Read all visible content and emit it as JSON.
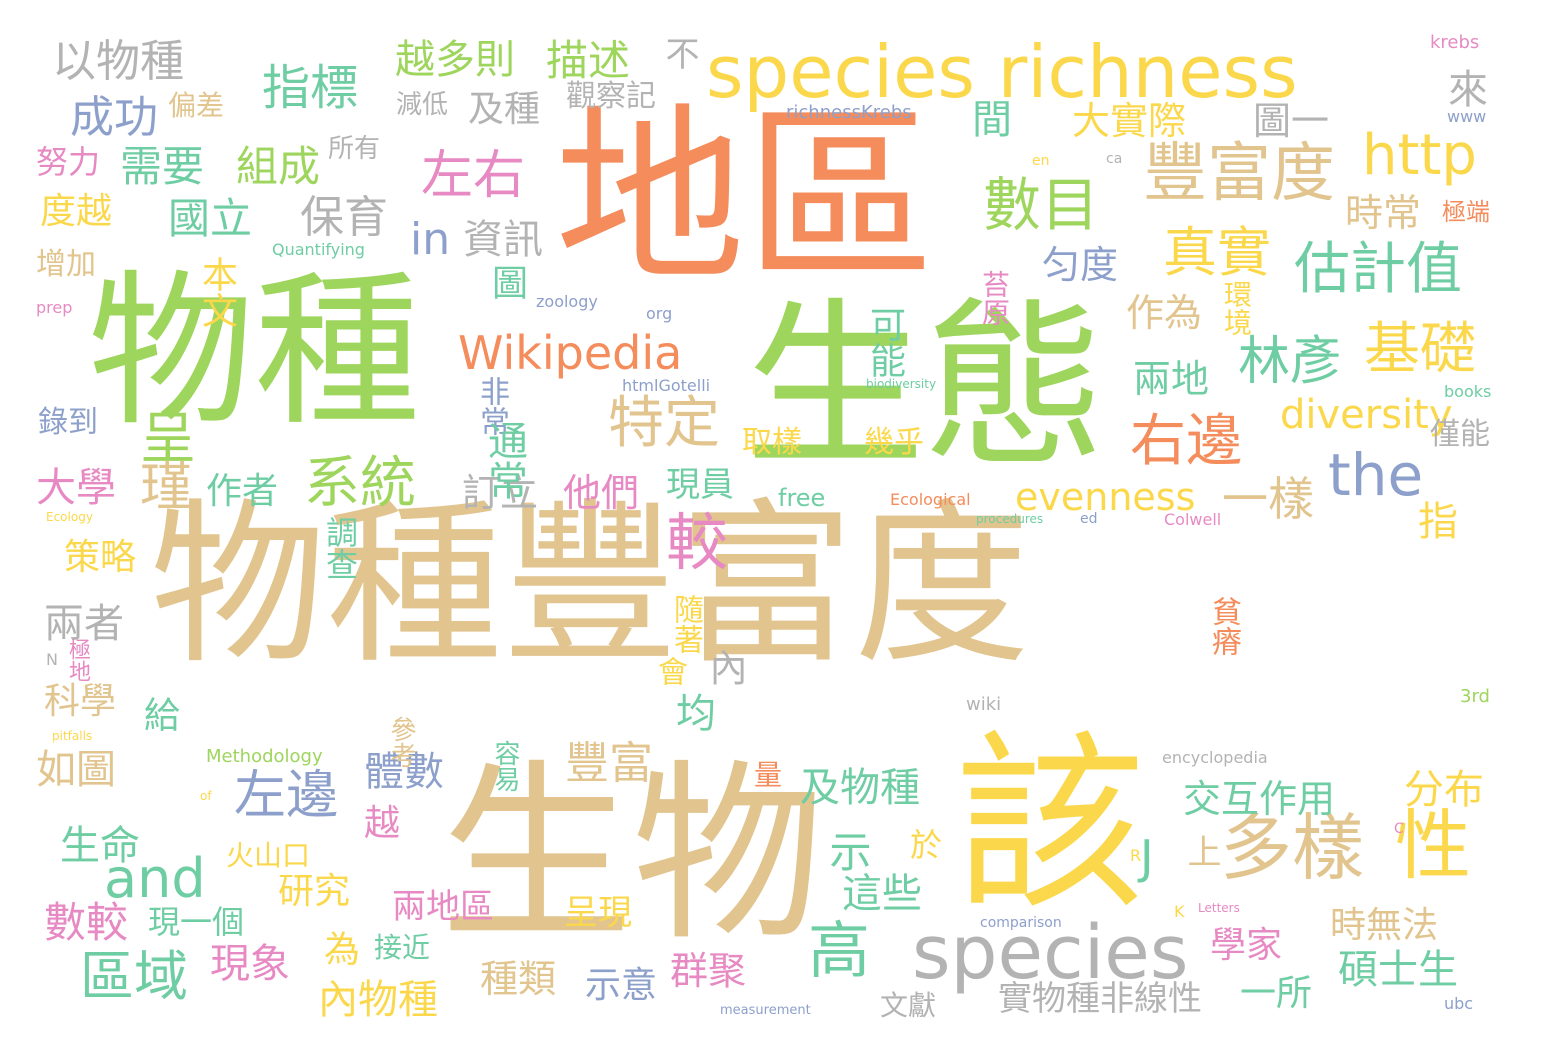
{
  "palette": {
    "tan": "#E1C48E",
    "orange": "#F48C5C",
    "green": "#9ED55C",
    "yellow": "#FBD84B",
    "teal": "#6ECDA3",
    "blue": "#8DA0CB",
    "pink": "#E78AC3",
    "gray": "#B3B3B3"
  },
  "words": [
    {
      "text": "物種豐富度",
      "color": "tan"
    },
    {
      "text": "地區",
      "color": "orange"
    },
    {
      "text": "物種",
      "color": "green"
    },
    {
      "text": "生態",
      "color": "green"
    },
    {
      "text": "生物",
      "color": "tan"
    },
    {
      "text": "該",
      "color": "yellow"
    },
    {
      "text": "species richness",
      "color": "yellow"
    },
    {
      "text": "species",
      "color": "gray"
    },
    {
      "text": "Wikipedia",
      "color": "orange"
    },
    {
      "text": "指標",
      "color": "teal"
    },
    {
      "text": "系統",
      "color": "green"
    },
    {
      "text": "多樣",
      "color": "tan"
    },
    {
      "text": "性",
      "color": "yellow"
    },
    {
      "text": "豐富度",
      "color": "tan"
    },
    {
      "text": "http",
      "color": "yellow"
    },
    {
      "text": "數目",
      "color": "green"
    },
    {
      "text": "估計值",
      "color": "teal"
    },
    {
      "text": "基礎",
      "color": "yellow"
    },
    {
      "text": "林彥",
      "color": "teal"
    },
    {
      "text": "真實",
      "color": "yellow"
    },
    {
      "text": "左右",
      "color": "pink"
    },
    {
      "text": "較",
      "color": "pink"
    },
    {
      "text": "特定",
      "color": "tan"
    },
    {
      "text": "右邊",
      "color": "orange"
    },
    {
      "text": "the",
      "color": "blue"
    },
    {
      "text": "diversity",
      "color": "yellow"
    },
    {
      "text": "evenness",
      "color": "yellow"
    },
    {
      "text": "一樣",
      "color": "tan"
    },
    {
      "text": "and",
      "color": "teal"
    },
    {
      "text": "高",
      "color": "teal"
    },
    {
      "text": "呈",
      "color": "green"
    },
    {
      "text": "瑾",
      "color": "tan"
    },
    {
      "text": "左邊",
      "color": "blue"
    },
    {
      "text": "區域",
      "color": "teal"
    },
    {
      "text": "以物種",
      "color": "gray"
    },
    {
      "text": "越多則",
      "color": "green"
    },
    {
      "text": "描述",
      "color": "green"
    },
    {
      "text": "成功",
      "color": "blue"
    },
    {
      "text": "需要",
      "color": "teal"
    },
    {
      "text": "組成",
      "color": "green"
    },
    {
      "text": "國立",
      "color": "teal"
    },
    {
      "text": "保育",
      "color": "gray"
    },
    {
      "text": "資訊",
      "color": "gray"
    },
    {
      "text": "in",
      "color": "blue"
    },
    {
      "text": "及種",
      "color": "gray"
    },
    {
      "text": "大實際",
      "color": "yellow"
    },
    {
      "text": "圖一",
      "color": "gray"
    },
    {
      "text": "匀度",
      "color": "blue"
    },
    {
      "text": "作為",
      "color": "tan"
    },
    {
      "text": "兩地",
      "color": "teal"
    },
    {
      "text": "時常",
      "color": "tan"
    },
    {
      "text": "大學",
      "color": "pink"
    },
    {
      "text": "作者",
      "color": "teal"
    },
    {
      "text": "訂立",
      "color": "gray"
    },
    {
      "text": "他們",
      "color": "pink"
    },
    {
      "text": "現員",
      "color": "teal"
    },
    {
      "text": "取樣",
      "color": "yellow"
    },
    {
      "text": "幾乎",
      "color": "yellow"
    },
    {
      "text": "僅能",
      "color": "gray"
    },
    {
      "text": "策略",
      "color": "yellow"
    },
    {
      "text": "兩者",
      "color": "gray"
    },
    {
      "text": "科學",
      "color": "tan"
    },
    {
      "text": "如圖",
      "color": "tan"
    },
    {
      "text": "體數",
      "color": "blue"
    },
    {
      "text": "豐富",
      "color": "tan"
    },
    {
      "text": "及物種",
      "color": "teal"
    },
    {
      "text": "交互作用",
      "color": "teal"
    },
    {
      "text": "分布",
      "color": "yellow"
    },
    {
      "text": "生命",
      "color": "teal"
    },
    {
      "text": "越",
      "color": "pink"
    },
    {
      "text": "火山口",
      "color": "yellow"
    },
    {
      "text": "研究",
      "color": "yellow"
    },
    {
      "text": "這些",
      "color": "teal"
    },
    {
      "text": "數較",
      "color": "pink"
    },
    {
      "text": "現一個",
      "color": "teal"
    },
    {
      "text": "兩地區",
      "color": "pink"
    },
    {
      "text": "呈現",
      "color": "yellow"
    },
    {
      "text": "學家",
      "color": "pink"
    },
    {
      "text": "時無法",
      "color": "tan"
    },
    {
      "text": "現象",
      "color": "pink"
    },
    {
      "text": "種類",
      "color": "tan"
    },
    {
      "text": "示意",
      "color": "blue"
    },
    {
      "text": "群聚",
      "color": "pink"
    },
    {
      "text": "碩士生",
      "color": "teal"
    },
    {
      "text": "內物種",
      "color": "yellow"
    },
    {
      "text": "實物種非線性",
      "color": "gray"
    },
    {
      "text": "一所",
      "color": "teal"
    },
    {
      "text": "接近",
      "color": "teal"
    },
    {
      "text": "文獻",
      "color": "gray"
    },
    {
      "text": "偏差",
      "color": "tan"
    },
    {
      "text": "努力",
      "color": "pink"
    },
    {
      "text": "度越",
      "color": "yellow"
    },
    {
      "text": "增加",
      "color": "tan"
    },
    {
      "text": "錄到",
      "color": "blue"
    },
    {
      "text": "減低",
      "color": "gray"
    },
    {
      "text": "觀察記",
      "color": "gray"
    },
    {
      "text": "所有",
      "color": "gray"
    },
    {
      "text": "richnessKrebs",
      "color": "blue"
    },
    {
      "text": "www",
      "color": "blue"
    },
    {
      "text": "krebs",
      "color": "pink"
    },
    {
      "text": "極端",
      "color": "orange"
    },
    {
      "text": "Quantifying",
      "color": "teal"
    },
    {
      "text": "zoology",
      "color": "blue"
    },
    {
      "text": "prep",
      "color": "pink"
    },
    {
      "text": "org",
      "color": "blue"
    },
    {
      "text": "htmlGotelli",
      "color": "blue"
    },
    {
      "text": "biodiversity",
      "color": "teal"
    },
    {
      "text": "books",
      "color": "teal"
    },
    {
      "text": "Ecological",
      "color": "orange"
    },
    {
      "text": "Ecology",
      "color": "yellow"
    },
    {
      "text": "procedures",
      "color": "teal"
    },
    {
      "text": "ed",
      "color": "blue"
    },
    {
      "text": "Colwell",
      "color": "pink"
    },
    {
      "text": "free",
      "color": "teal"
    },
    {
      "text": "Methodology",
      "color": "green"
    },
    {
      "text": "encyclopedia",
      "color": "gray"
    },
    {
      "text": "wiki",
      "color": "gray"
    },
    {
      "text": "comparison",
      "color": "blue"
    },
    {
      "text": "Letters",
      "color": "pink"
    },
    {
      "text": "measurement",
      "color": "blue"
    },
    {
      "text": "ubc",
      "color": "blue"
    },
    {
      "text": "pitfalls",
      "color": "yellow"
    },
    {
      "text": "of",
      "color": "yellow"
    },
    {
      "text": "3rd",
      "color": "green"
    },
    {
      "text": "en",
      "color": "yellow"
    },
    {
      "text": "ca",
      "color": "gray"
    },
    {
      "text": "N",
      "color": "gray"
    },
    {
      "text": "R",
      "color": "yellow"
    },
    {
      "text": "C",
      "color": "pink"
    },
    {
      "text": "K",
      "color": "yellow"
    },
    {
      "text": "J",
      "color": "teal"
    },
    {
      "text": "環境",
      "color": "yellow"
    },
    {
      "text": "苔原",
      "color": "pink"
    },
    {
      "text": "可能",
      "color": "teal"
    },
    {
      "text": "圖",
      "color": "teal"
    },
    {
      "text": "本文",
      "color": "yellow"
    },
    {
      "text": "非常",
      "color": "blue"
    },
    {
      "text": "間",
      "color": "teal"
    },
    {
      "text": "來",
      "color": "gray"
    },
    {
      "text": "不",
      "color": "gray"
    },
    {
      "text": "指",
      "color": "yellow"
    },
    {
      "text": "均",
      "color": "teal"
    },
    {
      "text": "內",
      "color": "gray"
    },
    {
      "text": "給",
      "color": "teal"
    },
    {
      "text": "示",
      "color": "teal"
    },
    {
      "text": "於",
      "color": "yellow"
    },
    {
      "text": "上",
      "color": "tan"
    },
    {
      "text": "為",
      "color": "yellow"
    },
    {
      "text": "調查",
      "color": "teal"
    },
    {
      "text": "隨著",
      "color": "yellow"
    },
    {
      "text": "會",
      "color": "yellow"
    },
    {
      "text": "極地",
      "color": "pink"
    },
    {
      "text": "參考",
      "color": "tan"
    },
    {
      "text": "容易",
      "color": "teal"
    },
    {
      "text": "量",
      "color": "orange"
    },
    {
      "text": "貧瘠",
      "color": "orange"
    },
    {
      "text": "通常",
      "color": "teal"
    }
  ]
}
